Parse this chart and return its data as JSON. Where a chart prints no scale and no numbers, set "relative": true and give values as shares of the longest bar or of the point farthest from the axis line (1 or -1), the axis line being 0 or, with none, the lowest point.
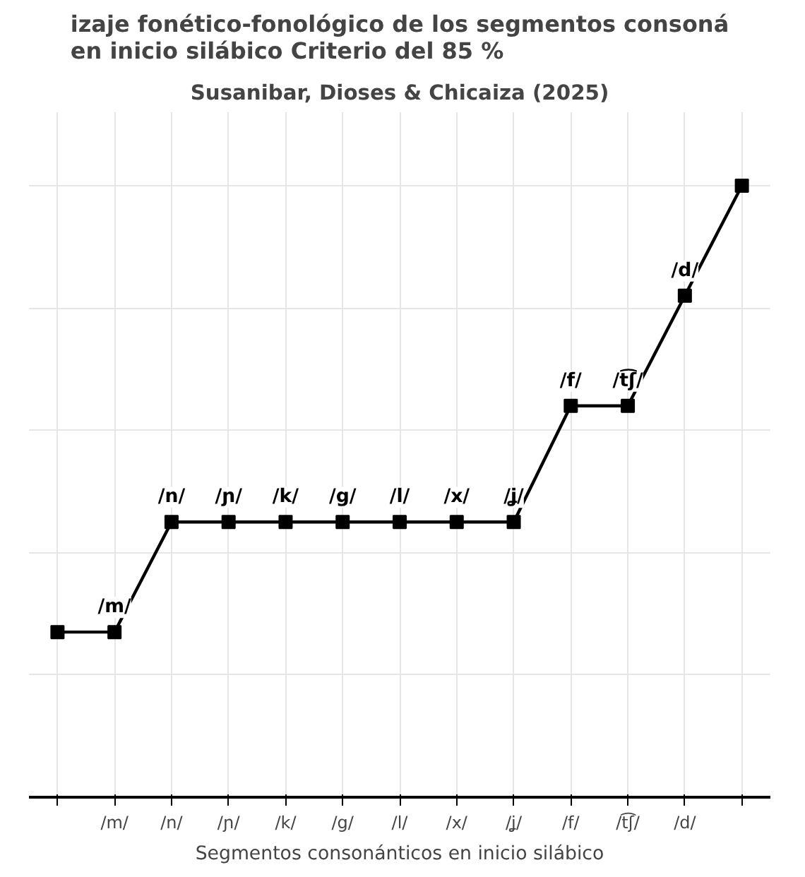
{
  "chart_data": {
    "type": "line",
    "title": "izaje fonético-fonológico de los segmentos consoná\nen inicio silábico Criterio del 85 %",
    "subtitle": "Susanibar, Dioses & Chicaiza (2025)",
    "xlabel": "Segmentos consonánticos en inicio silábico",
    "categories": [
      null,
      "/m/",
      "/n/",
      "/ɲ/",
      "/k/",
      "/g/",
      "/l/",
      "/x/",
      "/ʝ/",
      "/f/",
      "/t͡ʃ/",
      "/d/",
      null
    ],
    "relative": true,
    "grid": true,
    "marker": "square",
    "line_style": "solid",
    "series": [
      {
        "color": "#000000",
        "values": [
          0.27,
          0.27,
          0.45,
          0.45,
          0.45,
          0.45,
          0.45,
          0.45,
          0.45,
          0.64,
          0.64,
          0.82,
          1.0
        ]
      }
    ],
    "annotations": [
      {
        "text": "/m/",
        "x": "/m/",
        "y": 0.27
      },
      {
        "text": "/n/",
        "x": "/n/",
        "y": 0.45
      },
      {
        "text": "/ɲ/",
        "x": "/ɲ/",
        "y": 0.45
      },
      {
        "text": "/k/",
        "x": "/k/",
        "y": 0.45
      },
      {
        "text": "/g/",
        "x": "/g/",
        "y": 0.45
      },
      {
        "text": "/l/",
        "x": "/l/",
        "y": 0.45
      },
      {
        "text": "/x/",
        "x": "/x/",
        "y": 0.45
      },
      {
        "text": "/ʝ/",
        "x": "/ʝ/",
        "y": 0.45
      },
      {
        "text": "/f/",
        "x": "/f/",
        "y": 0.64
      },
      {
        "text": "/t͡ʃ/",
        "x": "/t͡ʃ/",
        "y": 0.64
      },
      {
        "text": "/d/",
        "x": "/d/",
        "y": 0.82
      }
    ]
  }
}
